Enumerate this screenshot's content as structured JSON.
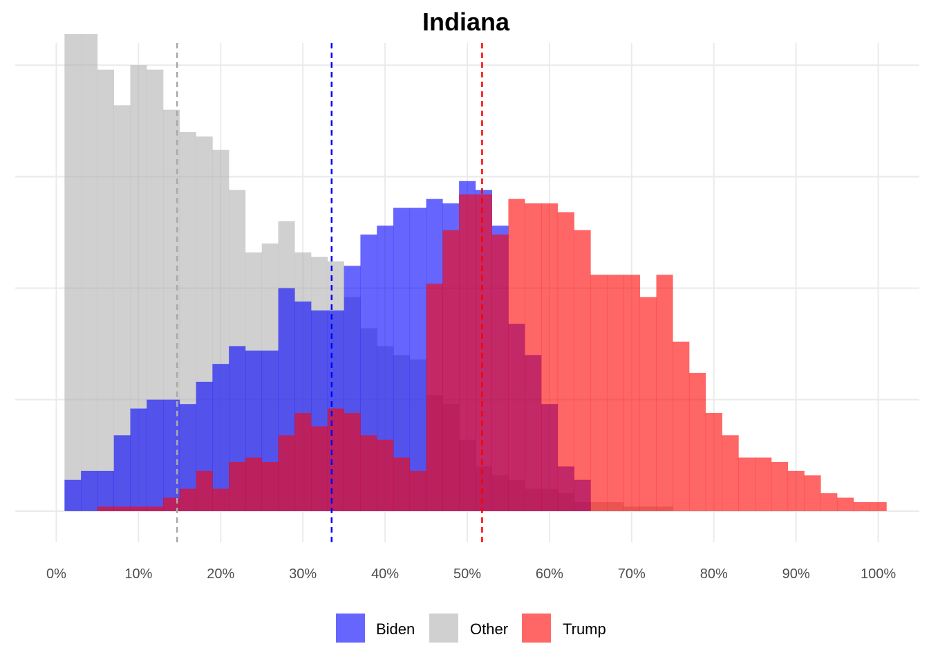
{
  "chart_data": {
    "type": "histogram",
    "title": "Indiana",
    "xlabel": "",
    "ylabel": "",
    "xlim": [
      -0.05,
      1.05
    ],
    "ylim": [
      -7,
      105
    ],
    "bin_width": 0.02,
    "bins_start": 0.01,
    "x_ticks": [
      0,
      0.1,
      0.2,
      0.3,
      0.4,
      0.5,
      0.6,
      0.7,
      0.8,
      0.9,
      1.0
    ],
    "x_tick_labels": [
      "0%",
      "10%",
      "20%",
      "30%",
      "40%",
      "50%",
      "60%",
      "70%",
      "80%",
      "90%",
      "100%"
    ],
    "y_gridlines": [
      0,
      25,
      50,
      75,
      100
    ],
    "grid": true,
    "legend_position": "bottom",
    "series": [
      {
        "name": "Biden",
        "color": "#0000FF",
        "opacity": 0.6,
        "mean": 0.335,
        "line_color": "#0000FF",
        "values": [
          7,
          9,
          9,
          17,
          23,
          25,
          25,
          24,
          29,
          33,
          37,
          36,
          36,
          50,
          47,
          45,
          45,
          55,
          62,
          64,
          68,
          68,
          70,
          69,
          74,
          72,
          64,
          42,
          35,
          24,
          10,
          7,
          0,
          0,
          0,
          0,
          0,
          0,
          0,
          0,
          0,
          0,
          0,
          0,
          0,
          0,
          0,
          0,
          0,
          0
        ]
      },
      {
        "name": "Other",
        "color": "#B0B0B0",
        "opacity": 0.6,
        "mean": 0.147,
        "line_color": "#AAAAAA",
        "values": [
          107,
          107,
          99,
          91,
          100,
          99,
          90,
          85,
          84,
          81,
          72,
          58,
          60,
          65,
          58,
          57,
          56,
          48,
          41,
          37,
          35,
          34,
          26,
          24,
          16,
          10,
          8,
          7,
          5,
          5,
          4,
          2,
          2,
          2,
          1,
          1,
          1,
          0,
          0,
          0,
          0,
          0,
          0,
          0,
          0,
          0,
          0,
          0,
          0,
          0
        ]
      },
      {
        "name": "Trump",
        "color": "#FF0000",
        "opacity": 0.6,
        "mean": 0.518,
        "line_color": "#FF0000",
        "values": [
          0,
          0,
          0,
          0,
          0,
          0,
          0,
          0,
          0,
          0,
          0,
          0,
          0,
          0,
          0,
          0,
          0,
          0,
          0,
          0,
          0,
          0,
          51,
          63,
          71,
          71,
          62,
          70,
          69,
          69,
          67,
          63,
          53,
          53,
          53,
          48,
          53,
          38,
          31,
          22,
          17,
          12,
          12,
          11,
          9,
          8,
          4,
          3,
          2,
          2
        ]
      }
    ],
    "overlap_trump_values": [
      0,
      0,
      1,
      1,
      1,
      1,
      3,
      5,
      9,
      5,
      11,
      12,
      11,
      17,
      22,
      19,
      23,
      22,
      17,
      16,
      12,
      9,
      51,
      63,
      71,
      71,
      62,
      70,
      69,
      69,
      67,
      63,
      53,
      53,
      53,
      48,
      53,
      38,
      31,
      22,
      17,
      12,
      12,
      11,
      9,
      8,
      4,
      3,
      2,
      2
    ]
  }
}
